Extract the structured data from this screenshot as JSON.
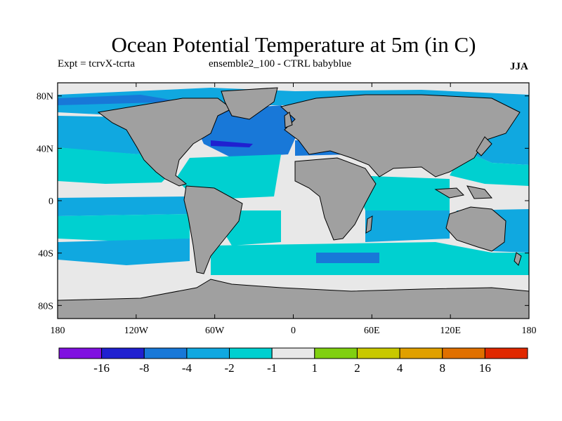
{
  "title": "Ocean Potential Temperature at 5m (in C)",
  "experiment": "Expt = tcrvX-tcrta",
  "ensemble": "ensemble2_100 - CTRL babyblue",
  "season": "JJA",
  "map": {
    "projection": "cylindrical equidistant",
    "lon_range": [
      -180,
      180
    ],
    "lat_range": [
      -90,
      90
    ],
    "land_color": "#a0a0a0",
    "lat_ticks": [
      {
        "value": 80,
        "label": "80N"
      },
      {
        "value": 40,
        "label": "40N"
      },
      {
        "value": 0,
        "label": "0"
      },
      {
        "value": -40,
        "label": "40S"
      },
      {
        "value": -80,
        "label": "80S"
      }
    ],
    "lon_ticks": [
      {
        "value": -180,
        "label": "180"
      },
      {
        "value": -120,
        "label": "120W"
      },
      {
        "value": -60,
        "label": "60W"
      },
      {
        "value": 0,
        "label": "0"
      },
      {
        "value": 60,
        "label": "60E"
      },
      {
        "value": 120,
        "label": "120E"
      },
      {
        "value": 180,
        "label": "180"
      }
    ]
  },
  "colorbar": {
    "colors": [
      "#8010e0",
      "#2020d0",
      "#1878d8",
      "#10a8e0",
      "#00d0d0",
      "#e8e8e8",
      "#80d010",
      "#c8c800",
      "#e0a000",
      "#e07000",
      "#e02800"
    ],
    "labels": [
      "-16",
      "-8",
      "-4",
      "-2",
      "-1",
      "1",
      "2",
      "4",
      "8",
      "16"
    ]
  }
}
